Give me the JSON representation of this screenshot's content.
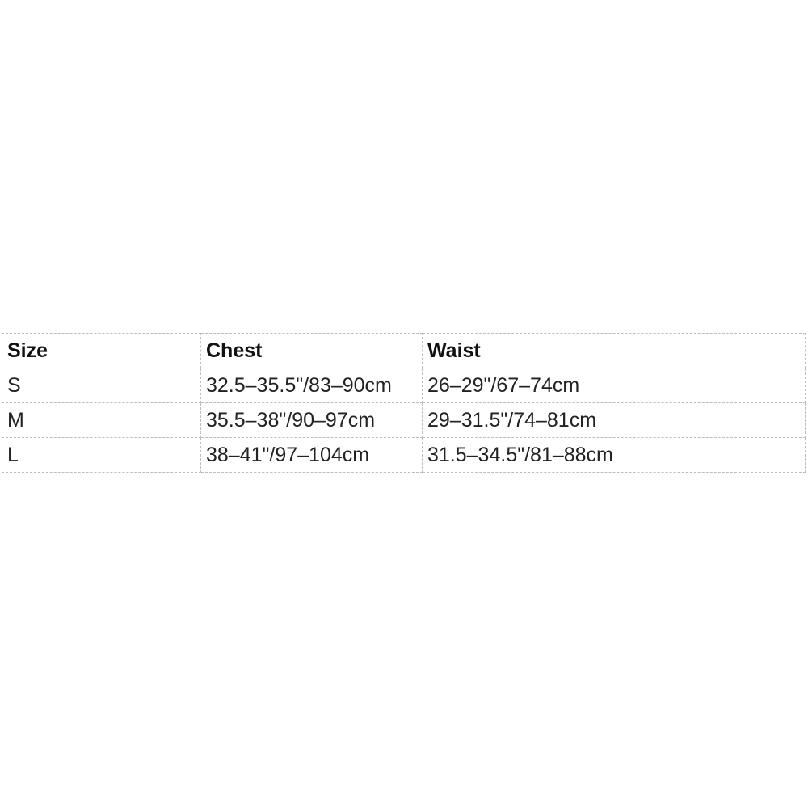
{
  "page": {
    "background_color": "#ffffff",
    "border_color": "#bdbdbd",
    "text_color": "#222222"
  },
  "size_chart": {
    "columns": {
      "size": "Size",
      "chest": "Chest",
      "waist": "Waist"
    },
    "rows": [
      {
        "size": "S",
        "chest": "32.5–35.5\"/83–90cm",
        "waist": "26–29\"/67–74cm"
      },
      {
        "size": "M",
        "chest": "35.5–38\"/90–97cm",
        "waist": "29–31.5\"/74–81cm"
      },
      {
        "size": "L",
        "chest": "38–41\"/97–104cm",
        "waist": "31.5–34.5\"/81–88cm"
      }
    ]
  }
}
